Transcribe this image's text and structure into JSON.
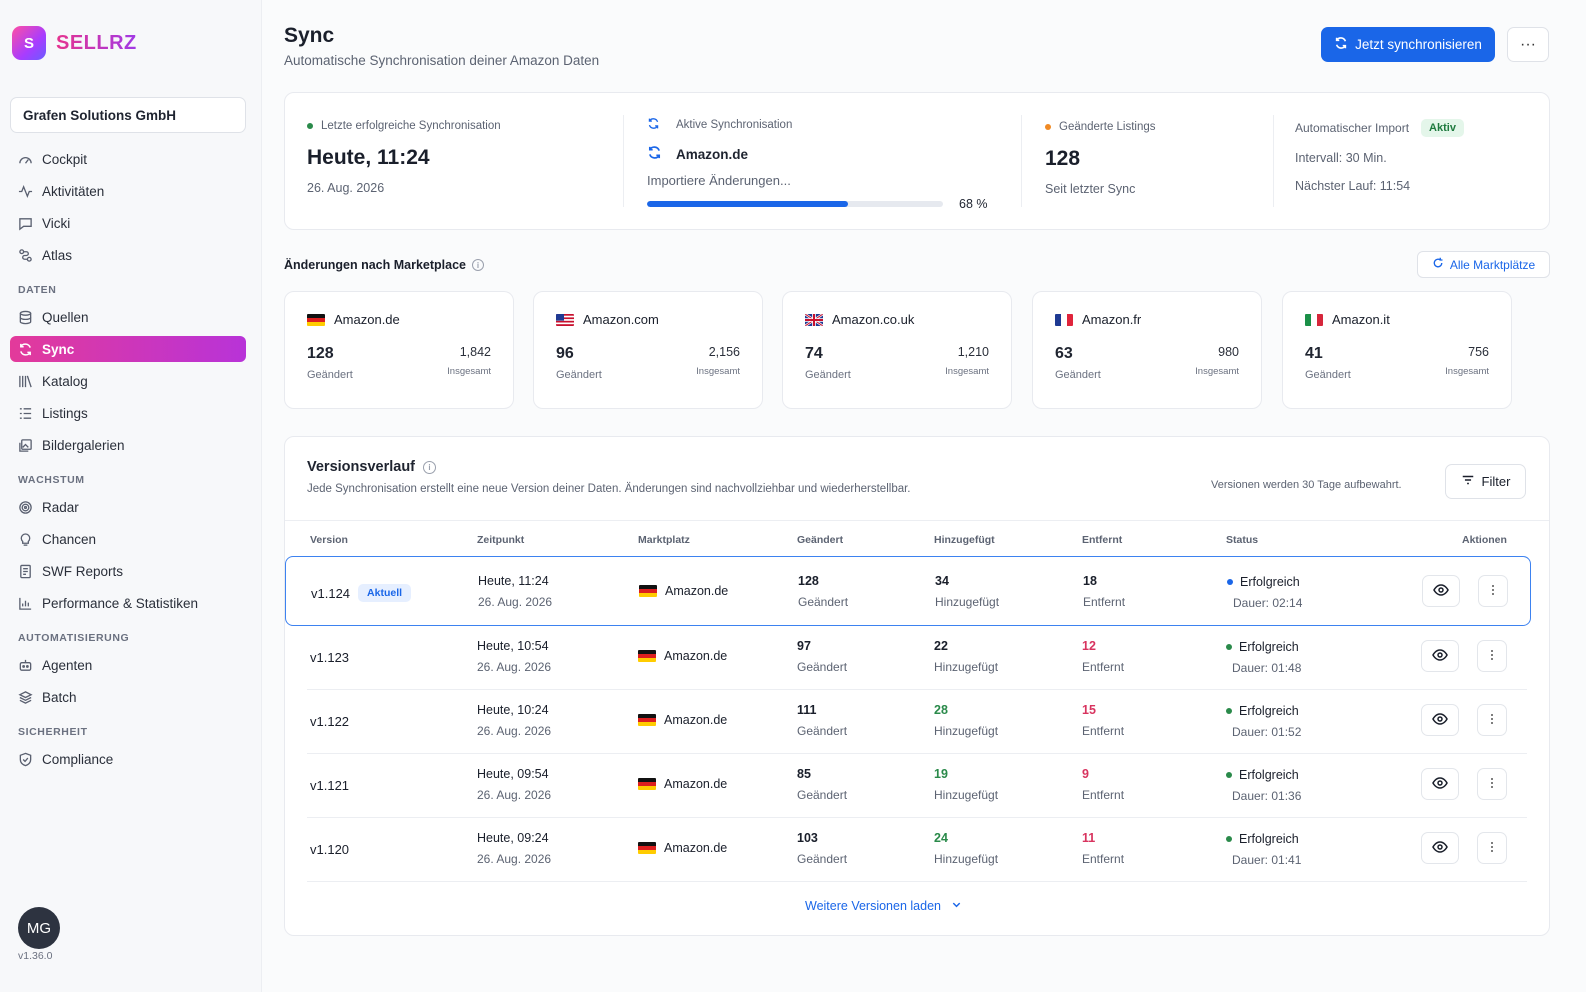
{
  "brand": {
    "logo_letter": "S",
    "name": "SELLRZ"
  },
  "org_name": "Grafen Solutions GmbH",
  "nav": {
    "top": [
      "Cockpit",
      "Aktivitäten",
      "Vicki",
      "Atlas"
    ],
    "daten_title": "DATEN",
    "daten": [
      "Quellen",
      "Sync",
      "Katalog",
      "Listings",
      "Bildergalerien"
    ],
    "wachstum_title": "WACHSTUM",
    "wachstum": [
      "Radar",
      "Chancen",
      "SWF Reports",
      "Performance & Statistiken"
    ],
    "automatisierung_title": "AUTOMATISIERUNG",
    "automatisierung": [
      "Agenten",
      "Batch"
    ],
    "sicherheit_title": "SICHERHEIT",
    "sicherheit": [
      "Compliance"
    ]
  },
  "user": {
    "initials": "MG",
    "app_version": "v1.36.0"
  },
  "header": {
    "title": "Sync",
    "subtitle": "Automatische Synchronisation deiner Amazon Daten",
    "sync_button": "Jetzt synchronisieren",
    "more_button": "···"
  },
  "stats": {
    "last_sync_label": "Letzte erfolgreiche Synchronisation",
    "last_sync_time": "Heute, 11:24",
    "last_sync_date": "26. Aug. 2026",
    "active_label": "Aktive Synchronisation",
    "active_marketplace": "Amazon.de",
    "active_status": "Importiere Änderungen...",
    "progress_percent": 68,
    "progress_text": "68 %",
    "changed_label": "Geänderte Listings",
    "changed_value": "128",
    "changed_sub": "Seit letzter Sync",
    "import_label": "Automatischer Import",
    "import_badge": "Aktiv",
    "interval": "Intervall: 30 Min.",
    "next_run": "Nächster Lauf: 11:54"
  },
  "marketplaces_section": {
    "title": "Änderungen nach Marketplace",
    "all_button": "Alle Marktplätze",
    "changed_label": "Geändert",
    "total_label": "Insgesamt",
    "items": [
      {
        "name": "Amazon.de",
        "changed": "128",
        "total": "1,842",
        "flag": "de"
      },
      {
        "name": "Amazon.com",
        "changed": "96",
        "total": "2,156",
        "flag": "us"
      },
      {
        "name": "Amazon.co.uk",
        "changed": "74",
        "total": "1,210",
        "flag": "uk"
      },
      {
        "name": "Amazon.fr",
        "changed": "63",
        "total": "980",
        "flag": "fr"
      },
      {
        "name": "Amazon.it",
        "changed": "41",
        "total": "756",
        "flag": "it"
      }
    ]
  },
  "versions": {
    "title": "Versionsverlauf",
    "description": "Jede Synchronisation erstellt eine neue Version deiner Daten. Änderungen sind nachvollziehbar und wiederherstellbar.",
    "retention": "Versionen werden 30 Tage aufbewahrt.",
    "filter_button": "Filter",
    "columns": [
      "Version",
      "Zeitpunkt",
      "Marktplatz",
      "Geändert",
      "Hinzugefügt",
      "Entfernt",
      "Status",
      "Aktionen"
    ],
    "current_badge": "Aktuell",
    "changed_label": "Geändert",
    "added_label": "Hinzugefügt",
    "removed_label": "Entfernt",
    "rows": [
      {
        "version": "v1.124",
        "time": "Heute, 11:24",
        "date": "26. Aug. 2026",
        "marketplace": "Amazon.de",
        "changed": "128",
        "added": "34",
        "removed": "18",
        "status": "Erfolgreich",
        "duration": "Dauer: 02:14"
      },
      {
        "version": "v1.123",
        "time": "Heute, 10:54",
        "date": "26. Aug. 2026",
        "marketplace": "Amazon.de",
        "changed": "97",
        "added": "22",
        "removed": "12",
        "status": "Erfolgreich",
        "duration": "Dauer: 01:48"
      },
      {
        "version": "v1.122",
        "time": "Heute, 10:24",
        "date": "26. Aug. 2026",
        "marketplace": "Amazon.de",
        "changed": "111",
        "added": "28",
        "removed": "15",
        "status": "Erfolgreich",
        "duration": "Dauer: 01:52"
      },
      {
        "version": "v1.121",
        "time": "Heute, 09:54",
        "date": "26. Aug. 2026",
        "marketplace": "Amazon.de",
        "changed": "85",
        "added": "19",
        "removed": "9",
        "status": "Erfolgreich",
        "duration": "Dauer: 01:36"
      },
      {
        "version": "v1.120",
        "time": "Heute, 09:24",
        "date": "26. Aug. 2026",
        "marketplace": "Amazon.de",
        "changed": "103",
        "added": "24",
        "removed": "11",
        "status": "Erfolgreich",
        "duration": "Dauer: 01:41"
      }
    ],
    "load_more": "Weitere Versionen laden"
  },
  "colors": {
    "primary": "#1a66e8",
    "accent_pink": "#e33a9a",
    "success": "#2a8a4a",
    "danger": "#d8345f"
  }
}
